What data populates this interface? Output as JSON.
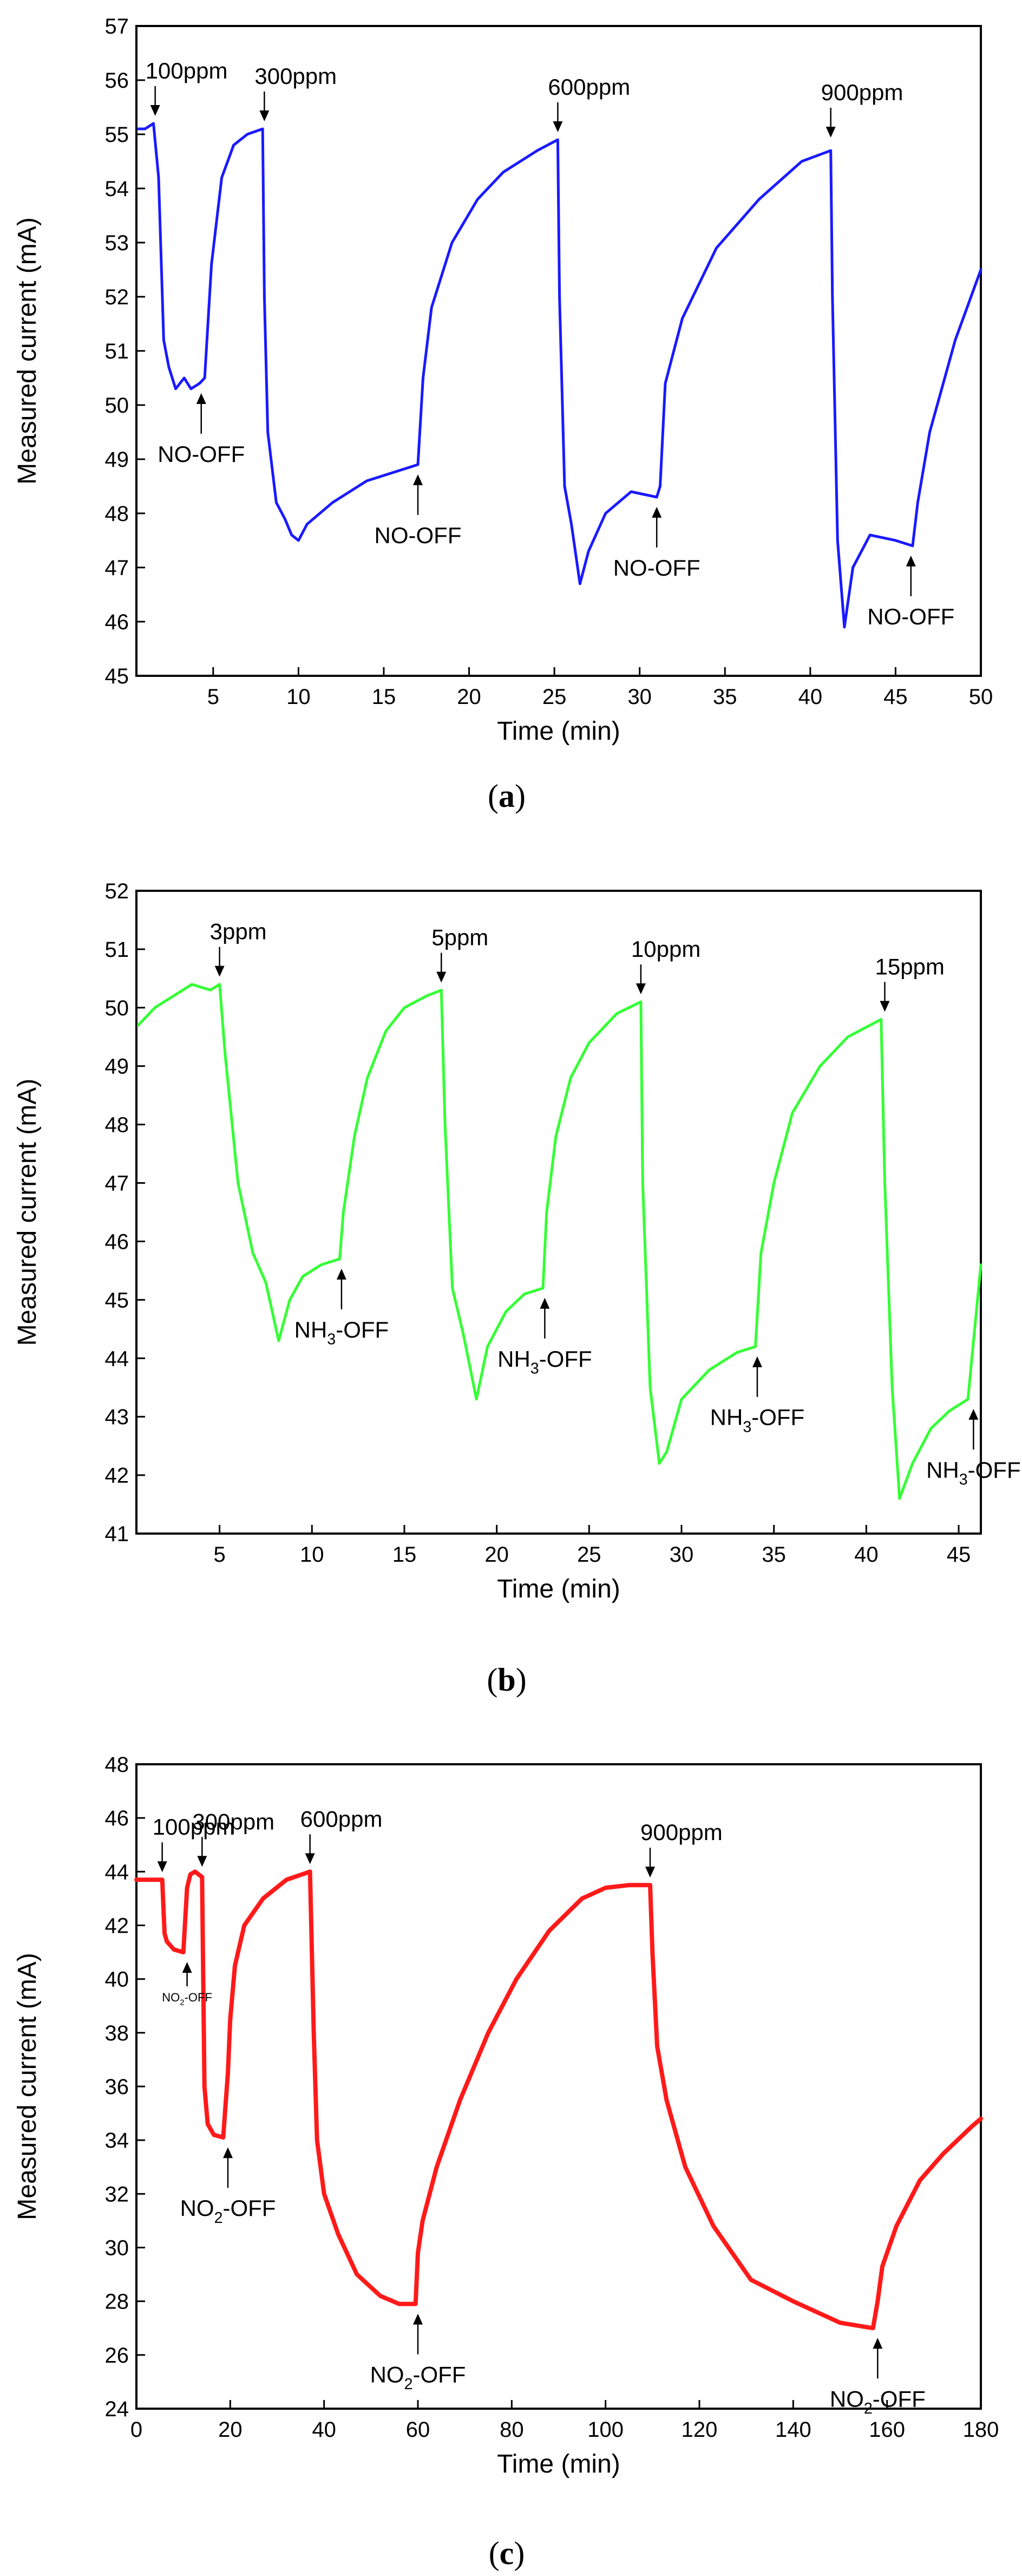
{
  "figure": {
    "panels": [
      {
        "id": "a",
        "label": "(a)",
        "label_letter": "a"
      },
      {
        "id": "b",
        "label": "(b)",
        "label_letter": "b"
      },
      {
        "id": "c",
        "label": "(c)",
        "label_letter": "c"
      }
    ]
  },
  "chart_data": [
    {
      "type": "line",
      "panel": "(a)",
      "title": "",
      "xlabel": "Time (min)",
      "ylabel": "Measured current (mA)",
      "xlim": [
        0.5,
        50
      ],
      "ylim": [
        45,
        57
      ],
      "xticks": [
        5,
        10,
        15,
        20,
        25,
        30,
        35,
        40,
        45,
        50
      ],
      "yticks": [
        45,
        46,
        47,
        48,
        49,
        50,
        51,
        52,
        53,
        54,
        55,
        56,
        57
      ],
      "color": "#1a1aff",
      "series": [
        {
          "name": "NO",
          "x": [
            0.6,
            1.0,
            1.5,
            1.8,
            2.1,
            2.4,
            2.8,
            3.3,
            3.7,
            4.2,
            4.5,
            4.9,
            5.5,
            6.2,
            7.0,
            7.9,
            8.0,
            8.2,
            8.7,
            9.2,
            9.6,
            10.0,
            10.5,
            12.0,
            14.0,
            16.0,
            17.0,
            17.3,
            17.8,
            19.0,
            20.5,
            22.0,
            24.0,
            25.2,
            25.3,
            25.6,
            26.0,
            26.5,
            27.0,
            28.0,
            29.5,
            31.0,
            31.2,
            31.5,
            32.5,
            34.5,
            37.0,
            39.5,
            41.2,
            41.3,
            41.6,
            42.0,
            42.5,
            43.5,
            45.0,
            46.0,
            46.3,
            47.0,
            48.5,
            50.0
          ],
          "y": [
            55.1,
            55.1,
            55.2,
            54.2,
            51.2,
            50.7,
            50.3,
            50.5,
            50.3,
            50.4,
            50.5,
            52.6,
            54.2,
            54.8,
            55.0,
            55.1,
            52.0,
            49.5,
            48.2,
            47.9,
            47.6,
            47.5,
            47.8,
            48.2,
            48.6,
            48.8,
            48.9,
            50.5,
            51.8,
            53.0,
            53.8,
            54.3,
            54.7,
            54.9,
            52.0,
            48.5,
            47.8,
            46.7,
            47.3,
            48.0,
            48.4,
            48.3,
            48.5,
            50.4,
            51.6,
            52.9,
            53.8,
            54.5,
            54.7,
            52.0,
            47.5,
            45.9,
            47.0,
            47.6,
            47.5,
            47.4,
            48.2,
            49.5,
            51.2,
            52.5
          ]
        }
      ],
      "annotations": [
        {
          "text": "100ppm",
          "x": 1.6,
          "y": 55.2,
          "dir": "down"
        },
        {
          "text": "300ppm",
          "x": 8.0,
          "y": 55.1,
          "dir": "down"
        },
        {
          "text": "600ppm",
          "x": 25.2,
          "y": 54.9,
          "dir": "down"
        },
        {
          "text": "900ppm",
          "x": 41.2,
          "y": 54.8,
          "dir": "down"
        },
        {
          "text": "NO-OFF",
          "x": 4.3,
          "y": 50.4,
          "dir": "up"
        },
        {
          "text": "NO-OFF",
          "x": 17.0,
          "y": 48.9,
          "dir": "up"
        },
        {
          "text": "NO-OFF",
          "x": 31.0,
          "y": 48.3,
          "dir": "up"
        },
        {
          "text": "NO-OFF",
          "x": 45.9,
          "y": 47.4,
          "dir": "up"
        }
      ]
    },
    {
      "type": "line",
      "panel": "(b)",
      "title": "",
      "xlabel": "Time (min)",
      "ylabel": "Measured current (mA)",
      "xlim": [
        0.5,
        46.2
      ],
      "ylim": [
        41,
        52
      ],
      "xticks": [
        5,
        10,
        15,
        20,
        25,
        30,
        35,
        40,
        45
      ],
      "yticks": [
        41,
        42,
        43,
        44,
        45,
        46,
        47,
        48,
        49,
        50,
        51,
        52
      ],
      "color": "#33ff33",
      "series": [
        {
          "name": "NH3",
          "x": [
            0.6,
            1.5,
            2.5,
            3.5,
            4.5,
            5.0,
            5.3,
            6.0,
            6.8,
            7.5,
            8.2,
            8.8,
            9.5,
            10.5,
            11.5,
            11.7,
            12.3,
            13.0,
            14.0,
            15.0,
            16.2,
            17.0,
            17.2,
            17.6,
            18.2,
            18.9,
            19.5,
            20.5,
            21.5,
            22.5,
            22.7,
            23.2,
            24.0,
            25.0,
            26.5,
            27.8,
            27.9,
            28.3,
            28.8,
            29.2,
            30.0,
            31.5,
            33.0,
            34.0,
            34.3,
            35.0,
            36.0,
            37.5,
            39.0,
            40.8,
            41.0,
            41.4,
            41.8,
            42.5,
            43.5,
            44.5,
            45.5,
            46.2
          ],
          "y": [
            49.7,
            50.0,
            50.2,
            50.4,
            50.3,
            50.4,
            49.2,
            47.0,
            45.8,
            45.3,
            44.3,
            45.0,
            45.4,
            45.6,
            45.7,
            46.5,
            47.8,
            48.8,
            49.6,
            50.0,
            50.2,
            50.3,
            48.0,
            45.2,
            44.4,
            43.3,
            44.2,
            44.8,
            45.1,
            45.2,
            46.5,
            47.8,
            48.8,
            49.4,
            49.9,
            50.1,
            47.0,
            43.5,
            42.2,
            42.4,
            43.3,
            43.8,
            44.1,
            44.2,
            45.8,
            47.0,
            48.2,
            49.0,
            49.5,
            49.8,
            47.0,
            43.5,
            41.6,
            42.2,
            42.8,
            43.1,
            43.3,
            45.6
          ]
        }
      ],
      "annotations": [
        {
          "text": "3ppm",
          "x": 5.0,
          "y": 50.4,
          "dir": "down"
        },
        {
          "text": "5ppm",
          "x": 17.0,
          "y": 50.3,
          "dir": "down"
        },
        {
          "text": "10ppm",
          "x": 27.8,
          "y": 50.1,
          "dir": "down"
        },
        {
          "text": "15ppm",
          "x": 41.0,
          "y": 49.8,
          "dir": "down"
        },
        {
          "text": "NH3-OFF",
          "x": 11.6,
          "y": 45.7,
          "dir": "up"
        },
        {
          "text": "NH3-OFF",
          "x": 22.6,
          "y": 45.2,
          "dir": "up"
        },
        {
          "text": "NH3-OFF",
          "x": 34.1,
          "y": 44.2,
          "dir": "up"
        },
        {
          "text": "NH3-OFF",
          "x": 45.8,
          "y": 43.3,
          "dir": "up"
        }
      ]
    },
    {
      "type": "line",
      "panel": "(c)",
      "title": "",
      "xlabel": "Time (min)",
      "ylabel": "Measured current (mA)",
      "xlim": [
        0,
        180
      ],
      "ylim": [
        24,
        48
      ],
      "xticks": [
        0,
        20,
        40,
        60,
        80,
        100,
        120,
        140,
        160,
        180
      ],
      "yticks": [
        24,
        26,
        28,
        30,
        32,
        34,
        36,
        38,
        40,
        42,
        44,
        46,
        48
      ],
      "color": "#ff1a1a",
      "series": [
        {
          "name": "NO2",
          "x": [
            0,
            5.5,
            6.0,
            6.5,
            8.0,
            10.0,
            10.8,
            11.5,
            12.5,
            14.0,
            14.5,
            15.2,
            16.5,
            18.5,
            19.5,
            20.0,
            21.0,
            23.0,
            27.0,
            32.0,
            37.0,
            37.8,
            38.5,
            40.0,
            43.0,
            47.0,
            52.0,
            56.0,
            59.5,
            60.0,
            61.0,
            64.0,
            69.0,
            75.0,
            81.0,
            88.0,
            95.0,
            100.0,
            105.0,
            109.5,
            110.0,
            111.0,
            113.0,
            117.0,
            123.0,
            131.0,
            140.0,
            150.0,
            157.0,
            158.0,
            159.0,
            162.0,
            167.0,
            172.0,
            178.0,
            180.0
          ],
          "y": [
            43.7,
            43.7,
            41.7,
            41.4,
            41.1,
            41.0,
            43.4,
            43.9,
            44.0,
            43.8,
            36.0,
            34.6,
            34.2,
            34.1,
            36.5,
            38.5,
            40.5,
            42.0,
            43.0,
            43.7,
            44.0,
            38.0,
            34.0,
            32.0,
            30.5,
            29.0,
            28.2,
            27.9,
            27.9,
            29.8,
            31.0,
            33.0,
            35.5,
            38.0,
            40.0,
            41.8,
            43.0,
            43.4,
            43.5,
            43.5,
            41.0,
            37.5,
            35.5,
            33.0,
            30.8,
            28.8,
            28.0,
            27.2,
            27.0,
            28.0,
            29.3,
            30.8,
            32.5,
            33.5,
            34.5,
            34.8
          ]
        }
      ],
      "annotations": [
        {
          "text": "100ppm",
          "x": 5.5,
          "y": 43.7,
          "dir": "down"
        },
        {
          "text": "300ppm",
          "x": 14.0,
          "y": 43.9,
          "dir": "down"
        },
        {
          "text": "600ppm",
          "x": 37.0,
          "y": 44.0,
          "dir": "down"
        },
        {
          "text": "900ppm",
          "x": 109.5,
          "y": 43.5,
          "dir": "down"
        },
        {
          "text": "NO2-OFF",
          "x": 10.8,
          "y": 41.0,
          "dir": "up",
          "small": true
        },
        {
          "text": "NO2-OFF",
          "x": 19.5,
          "y": 34.1,
          "dir": "up"
        },
        {
          "text": "NO2-OFF",
          "x": 60.0,
          "y": 27.9,
          "dir": "up"
        },
        {
          "text": "NO2-OFF",
          "x": 158.0,
          "y": 27.0,
          "dir": "up"
        }
      ]
    }
  ]
}
